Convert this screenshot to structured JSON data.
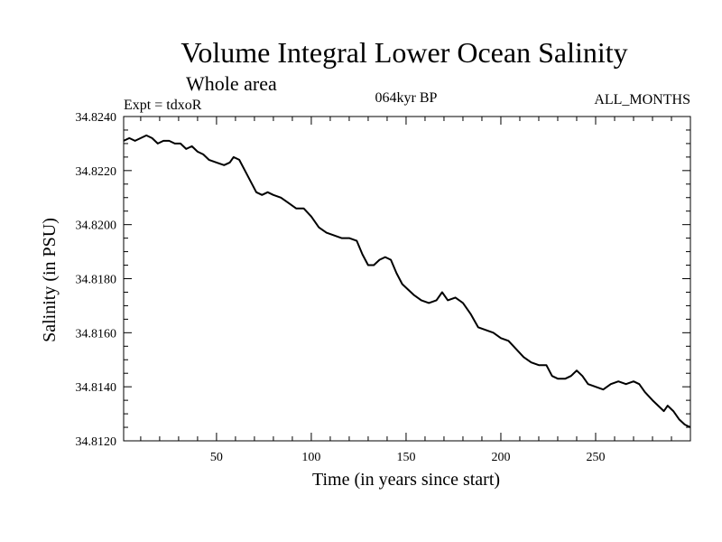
{
  "chart_data": {
    "type": "line",
    "title": "Volume Integral Lower Ocean Salinity",
    "subtitle": "Whole area",
    "experiment": "Expt = tdxoR",
    "period": "064kyr BP",
    "months": "ALL_MONTHS",
    "xlabel": "Time (in years since start)",
    "ylabel": "Salinity (in PSU)",
    "xlim": [
      1,
      300
    ],
    "ylim": [
      34.812,
      34.824
    ],
    "x_ticks": [
      50,
      100,
      150,
      200,
      250
    ],
    "y_ticks": [
      34.812,
      34.814,
      34.816,
      34.818,
      34.82,
      34.822,
      34.824
    ],
    "y_tick_labels": [
      "34.8120",
      "34.8140",
      "34.8160",
      "34.8180",
      "34.8200",
      "34.8220",
      "34.8240"
    ],
    "grid": false,
    "series": [
      {
        "color": "#000000",
        "points": [
          [
            1,
            34.8231
          ],
          [
            4,
            34.8232
          ],
          [
            7,
            34.8231
          ],
          [
            10,
            34.8232
          ],
          [
            13,
            34.8233
          ],
          [
            16,
            34.8232
          ],
          [
            19,
            34.823
          ],
          [
            22,
            34.8231
          ],
          [
            25,
            34.8231
          ],
          [
            28,
            34.823
          ],
          [
            31,
            34.823
          ],
          [
            34,
            34.8228
          ],
          [
            37,
            34.8229
          ],
          [
            40,
            34.8227
          ],
          [
            43,
            34.8226
          ],
          [
            46,
            34.8224
          ],
          [
            50,
            34.8223
          ],
          [
            54,
            34.8222
          ],
          [
            57,
            34.8223
          ],
          [
            59,
            34.8225
          ],
          [
            62,
            34.8224
          ],
          [
            65,
            34.822
          ],
          [
            68,
            34.8216
          ],
          [
            71,
            34.8212
          ],
          [
            74,
            34.8211
          ],
          [
            77,
            34.8212
          ],
          [
            80,
            34.8211
          ],
          [
            84,
            34.821
          ],
          [
            88,
            34.8208
          ],
          [
            92,
            34.8206
          ],
          [
            96,
            34.8206
          ],
          [
            100,
            34.8203
          ],
          [
            104,
            34.8199
          ],
          [
            108,
            34.8197
          ],
          [
            112,
            34.8196
          ],
          [
            116,
            34.8195
          ],
          [
            120,
            34.8195
          ],
          [
            124,
            34.8194
          ],
          [
            127,
            34.8189
          ],
          [
            130,
            34.8185
          ],
          [
            133,
            34.8185
          ],
          [
            136,
            34.8187
          ],
          [
            139,
            34.8188
          ],
          [
            142,
            34.8187
          ],
          [
            145,
            34.8182
          ],
          [
            148,
            34.8178
          ],
          [
            151,
            34.8176
          ],
          [
            154,
            34.8174
          ],
          [
            158,
            34.8172
          ],
          [
            162,
            34.8171
          ],
          [
            166,
            34.8172
          ],
          [
            169,
            34.8175
          ],
          [
            172,
            34.8172
          ],
          [
            176,
            34.8173
          ],
          [
            180,
            34.8171
          ],
          [
            184,
            34.8167
          ],
          [
            188,
            34.8162
          ],
          [
            192,
            34.8161
          ],
          [
            196,
            34.816
          ],
          [
            200,
            34.8158
          ],
          [
            204,
            34.8157
          ],
          [
            208,
            34.8154
          ],
          [
            212,
            34.8151
          ],
          [
            216,
            34.8149
          ],
          [
            220,
            34.8148
          ],
          [
            224,
            34.8148
          ],
          [
            227,
            34.8144
          ],
          [
            230,
            34.8143
          ],
          [
            234,
            34.8143
          ],
          [
            237,
            34.8144
          ],
          [
            240,
            34.8146
          ],
          [
            243,
            34.8144
          ],
          [
            246,
            34.8141
          ],
          [
            250,
            34.814
          ],
          [
            254,
            34.8139
          ],
          [
            258,
            34.8141
          ],
          [
            262,
            34.8142
          ],
          [
            266,
            34.8141
          ],
          [
            270,
            34.8142
          ],
          [
            273,
            34.8141
          ],
          [
            276,
            34.8138
          ],
          [
            280,
            34.8135
          ],
          [
            283,
            34.8133
          ],
          [
            286,
            34.8131
          ],
          [
            288,
            34.8133
          ],
          [
            291,
            34.8131
          ],
          [
            294,
            34.8128
          ],
          [
            297,
            34.8126
          ],
          [
            300,
            34.8125
          ]
        ]
      }
    ]
  }
}
